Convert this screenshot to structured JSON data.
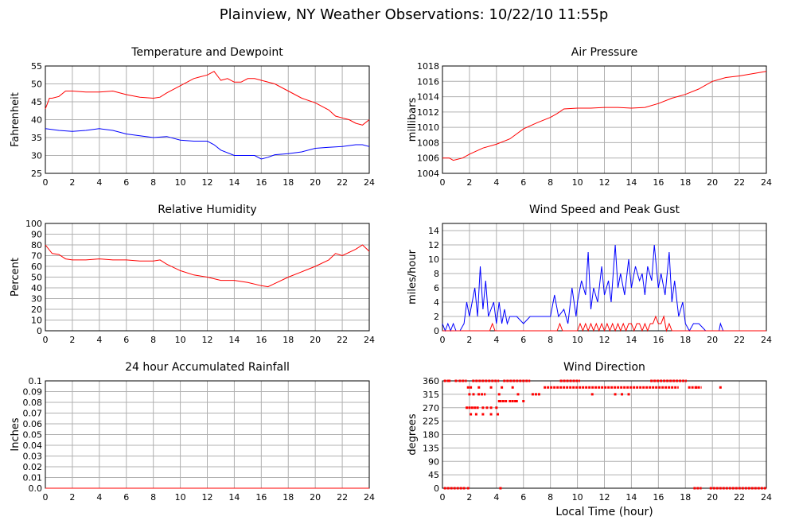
{
  "page": {
    "title": "Plainview, NY Weather Observations: 10/22/10 11:55p"
  },
  "chart_data": [
    {
      "id": "temp",
      "type": "line",
      "title": "Temperature and Dewpoint",
      "ylabel": "Fahrenheit",
      "xlabel": "",
      "xlim": [
        0,
        24
      ],
      "ylim": [
        25,
        55
      ],
      "xticks": [
        0,
        2,
        4,
        6,
        8,
        10,
        12,
        14,
        16,
        18,
        20,
        22,
        24
      ],
      "yticks": [
        25,
        30,
        35,
        40,
        45,
        50,
        55
      ],
      "grid": true,
      "series": [
        {
          "color": "#ff0000",
          "x": [
            0,
            0.3,
            0.5,
            1,
            1.5,
            2,
            3,
            4,
            5,
            6,
            7,
            8,
            8.5,
            9,
            10,
            11,
            11.5,
            12,
            12.5,
            12.8,
            13,
            13.5,
            14,
            14.5,
            15,
            15.5,
            16,
            17,
            18,
            19,
            20,
            21,
            21.5,
            22,
            22.5,
            23,
            23.5,
            24
          ],
          "y": [
            43,
            46,
            46,
            46.5,
            48,
            48,
            47.7,
            47.7,
            48,
            47,
            46.3,
            46,
            46.3,
            47.5,
            49.5,
            51.5,
            52,
            52.5,
            53.5,
            52,
            51,
            51.5,
            50.5,
            50.5,
            51.5,
            51.5,
            51,
            50,
            48,
            46,
            44.7,
            42.7,
            41,
            40.5,
            40,
            39,
            38.5,
            40
          ]
        },
        {
          "color": "#0000ff",
          "x": [
            0,
            1,
            2,
            3,
            4,
            5,
            6,
            7,
            8,
            9,
            10,
            11,
            12,
            12.5,
            13,
            14,
            15,
            15.5,
            16,
            16.5,
            17,
            18,
            19,
            20,
            21,
            22,
            23,
            23.5,
            24
          ],
          "y": [
            37.5,
            37,
            36.7,
            37,
            37.5,
            37,
            36,
            35.5,
            35,
            35.3,
            34.3,
            34,
            34,
            33,
            31.5,
            30,
            30,
            30,
            29,
            29.5,
            30.2,
            30.5,
            31,
            32,
            32.3,
            32.5,
            33,
            33,
            32.5
          ]
        }
      ]
    },
    {
      "id": "pressure",
      "type": "line",
      "title": "Air Pressure",
      "ylabel": "millibars",
      "xlabel": "",
      "xlim": [
        0,
        24
      ],
      "ylim": [
        1004,
        1018
      ],
      "xticks": [
        0,
        2,
        4,
        6,
        8,
        10,
        12,
        14,
        16,
        18,
        20,
        22,
        24
      ],
      "yticks": [
        1004,
        1006,
        1008,
        1010,
        1012,
        1014,
        1016,
        1018
      ],
      "grid": true,
      "series": [
        {
          "color": "#ff0000",
          "x": [
            0,
            0.5,
            0.8,
            1.5,
            2,
            3,
            4,
            5,
            6,
            7,
            8,
            8.5,
            9,
            10,
            11,
            12,
            13,
            14,
            15,
            16,
            17,
            18,
            19,
            20,
            21,
            22,
            23,
            24
          ],
          "y": [
            1006,
            1006,
            1005.7,
            1006,
            1006.5,
            1007.3,
            1007.8,
            1008.5,
            1009.8,
            1010.6,
            1011.3,
            1011.8,
            1012.4,
            1012.5,
            1012.5,
            1012.6,
            1012.6,
            1012.5,
            1012.6,
            1013.1,
            1013.8,
            1014.3,
            1015,
            1016,
            1016.5,
            1016.7,
            1017,
            1017.3
          ]
        }
      ]
    },
    {
      "id": "humidity",
      "type": "line",
      "title": "Relative Humidity",
      "ylabel": "Percent",
      "xlabel": "",
      "xlim": [
        0,
        24
      ],
      "ylim": [
        0,
        100
      ],
      "xticks": [
        0,
        2,
        4,
        6,
        8,
        10,
        12,
        14,
        16,
        18,
        20,
        22,
        24
      ],
      "yticks": [
        0,
        10,
        20,
        30,
        40,
        50,
        60,
        70,
        80,
        90,
        100
      ],
      "grid": true,
      "series": [
        {
          "color": "#ff0000",
          "x": [
            0,
            0.5,
            1,
            1.5,
            2,
            3,
            4,
            5,
            6,
            7,
            8,
            8.5,
            9,
            10,
            11,
            12,
            13,
            14,
            15,
            16,
            16.5,
            17,
            18,
            19,
            20,
            21,
            21.5,
            22,
            23,
            23.5,
            24
          ],
          "y": [
            80,
            72,
            71,
            67,
            66,
            66,
            67,
            66,
            66,
            65,
            65,
            66,
            62,
            56,
            52,
            50,
            47,
            47,
            45,
            42,
            41,
            44,
            50,
            55,
            60,
            66,
            72,
            70,
            76,
            80,
            74
          ]
        }
      ]
    },
    {
      "id": "wind",
      "type": "line",
      "title": "Wind Speed and Peak Gust",
      "ylabel": "miles/hour",
      "xlabel": "",
      "xlim": [
        0,
        24
      ],
      "ylim": [
        0,
        15
      ],
      "xticks": [
        0,
        2,
        4,
        6,
        8,
        10,
        12,
        14,
        16,
        18,
        20,
        22,
        24
      ],
      "yticks": [
        0,
        2,
        4,
        6,
        8,
        10,
        12,
        14
      ],
      "grid": true,
      "series": [
        {
          "color": "#0000ff",
          "x": [
            0,
            0.2,
            0.4,
            0.6,
            0.8,
            1,
            1.3,
            1.6,
            1.8,
            2,
            2.2,
            2.4,
            2.6,
            2.8,
            3,
            3.2,
            3.4,
            3.6,
            3.8,
            4,
            4.2,
            4.4,
            4.6,
            4.8,
            5,
            5.5,
            6,
            6.5,
            7,
            7.5,
            8,
            8.3,
            8.6,
            9,
            9.3,
            9.6,
            9.9,
            10,
            10.3,
            10.6,
            10.8,
            11,
            11.2,
            11.5,
            11.8,
            12,
            12.3,
            12.5,
            12.8,
            13,
            13.2,
            13.5,
            13.8,
            14,
            14.3,
            14.6,
            14.8,
            15,
            15.2,
            15.5,
            15.7,
            16,
            16.2,
            16.5,
            16.8,
            17,
            17.2,
            17.5,
            17.8,
            18,
            18.3,
            18.6,
            19,
            19.5,
            20,
            20.5,
            20.6,
            20.8,
            21,
            24
          ],
          "y": [
            1,
            0,
            1,
            0,
            1,
            0,
            0,
            1,
            4,
            2,
            4,
            6,
            2,
            9,
            3,
            7,
            2,
            3,
            4,
            1,
            4,
            1,
            3,
            1,
            2,
            2,
            1,
            2,
            2,
            2,
            2,
            5,
            2,
            3,
            1,
            6,
            2,
            4,
            7,
            5,
            11,
            3,
            6,
            4,
            9,
            5,
            7,
            4,
            12,
            6,
            8,
            5,
            10,
            6,
            9,
            7,
            8,
            5,
            9,
            7,
            12,
            6,
            8,
            5,
            11,
            4,
            7,
            2,
            4,
            1,
            0,
            1,
            1,
            0,
            0,
            0,
            1,
            0,
            0,
            0
          ]
        },
        {
          "color": "#ff0000",
          "x": [
            0,
            3,
            3.5,
            3.7,
            3.9,
            4.1,
            4.5,
            8.5,
            8.7,
            8.9,
            9.1,
            10,
            10.2,
            10.4,
            10.6,
            10.8,
            11,
            11.2,
            11.4,
            11.6,
            11.8,
            12,
            12.2,
            12.4,
            12.6,
            12.8,
            13,
            13.2,
            13.4,
            13.6,
            13.8,
            14,
            14.2,
            14.4,
            14.6,
            14.8,
            15,
            15.2,
            15.4,
            15.6,
            15.8,
            16,
            16.2,
            16.4,
            16.6,
            16.8,
            17,
            18,
            24
          ],
          "y": [
            0,
            0,
            0,
            1,
            0,
            0,
            0,
            0,
            1,
            0,
            0,
            0,
            1,
            0,
            1,
            0,
            1,
            0,
            1,
            0,
            1,
            0,
            1,
            0,
            1,
            0,
            1,
            0,
            1,
            0,
            1,
            1,
            0,
            1,
            1,
            0,
            1,
            0,
            1,
            1,
            2,
            1,
            1,
            2,
            0,
            1,
            0,
            0,
            0
          ]
        }
      ]
    },
    {
      "id": "rain",
      "type": "line",
      "title": "24 hour Accumulated Rainfall",
      "ylabel": "Inches",
      "xlabel": "",
      "xlim": [
        0,
        24
      ],
      "ylim": [
        0,
        0.1
      ],
      "xticks": [
        0,
        2,
        4,
        6,
        8,
        10,
        12,
        14,
        16,
        18,
        20,
        22,
        24
      ],
      "yticks": [
        "0.0",
        "0.01",
        "0.02",
        "0.03",
        "0.04",
        "0.05",
        "0.06",
        "0.07",
        "0.08",
        "0.09",
        "0.1"
      ],
      "grid": true,
      "series": [
        {
          "color": "#ff0000",
          "x": [
            0,
            24
          ],
          "y": [
            0,
            0
          ]
        }
      ]
    },
    {
      "id": "winddir",
      "type": "scatter",
      "title": "Wind Direction",
      "ylabel": "degrees",
      "xlabel": "Local Time (hour)",
      "xlim": [
        0,
        24
      ],
      "ylim": [
        0,
        360
      ],
      "xticks": [
        0,
        2,
        4,
        6,
        8,
        10,
        12,
        14,
        16,
        18,
        20,
        22,
        24
      ],
      "yticks": [
        0,
        45,
        90,
        135,
        180,
        225,
        270,
        315,
        360
      ],
      "grid": true,
      "series": [
        {
          "color": "#ff0000",
          "runs": [
            {
              "y": 0,
              "x0": 0.1,
              "x1": 1.5
            },
            {
              "y": 0,
              "x0": 18.6,
              "x1": 19.2
            },
            {
              "y": 0,
              "x0": 19.8,
              "x1": 24
            },
            {
              "y": 360,
              "x0": 0.1,
              "x1": 0.6
            },
            {
              "y": 360,
              "x0": 1.2,
              "x1": 1.8
            },
            {
              "y": 360,
              "x0": 2.2,
              "x1": 4.2
            },
            {
              "y": 360,
              "x0": 4.5,
              "x1": 6.5
            },
            {
              "y": 360,
              "x0": 8.7,
              "x1": 10.2
            },
            {
              "y": 360,
              "x0": 15.4,
              "x1": 18.1
            },
            {
              "y": 338,
              "x0": 7.5,
              "x1": 17.5
            },
            {
              "y": 338,
              "x0": 18.2,
              "x1": 19.2
            },
            {
              "y": 315,
              "x0": 2.6,
              "x1": 3.2
            },
            {
              "y": 315,
              "x0": 6.6,
              "x1": 7.3
            }
          ],
          "x": [
            0.5,
            1.0,
            1.8,
            2.0,
            2.2,
            2.4,
            2.6,
            3.0,
            3.3,
            3.6,
            4.0,
            4.2,
            4.3,
            4.5,
            4.7,
            5.0,
            5.2,
            5.4,
            5.5,
            6.0,
            2.1,
            2.5,
            3.0,
            3.6,
            4.1,
            2.0,
            2.3,
            4.2,
            5.6,
            1.9,
            2.1,
            4.4,
            1.6,
            1.9,
            4.3,
            11.1,
            12.8,
            13.3,
            13.8,
            20.6,
            18.8,
            2.7,
            3.6,
            5.2
          ],
          "y": [
            360,
            360,
            270,
            270,
            270,
            270,
            270,
            270,
            270,
            270,
            270,
            292,
            292,
            292,
            292,
            292,
            292,
            292,
            292,
            292,
            248,
            248,
            248,
            248,
            248,
            315,
            315,
            315,
            315,
            338,
            338,
            338,
            0,
            0,
            0,
            315,
            315,
            315,
            315,
            338,
            338,
            338,
            338,
            338
          ]
        }
      ]
    }
  ]
}
